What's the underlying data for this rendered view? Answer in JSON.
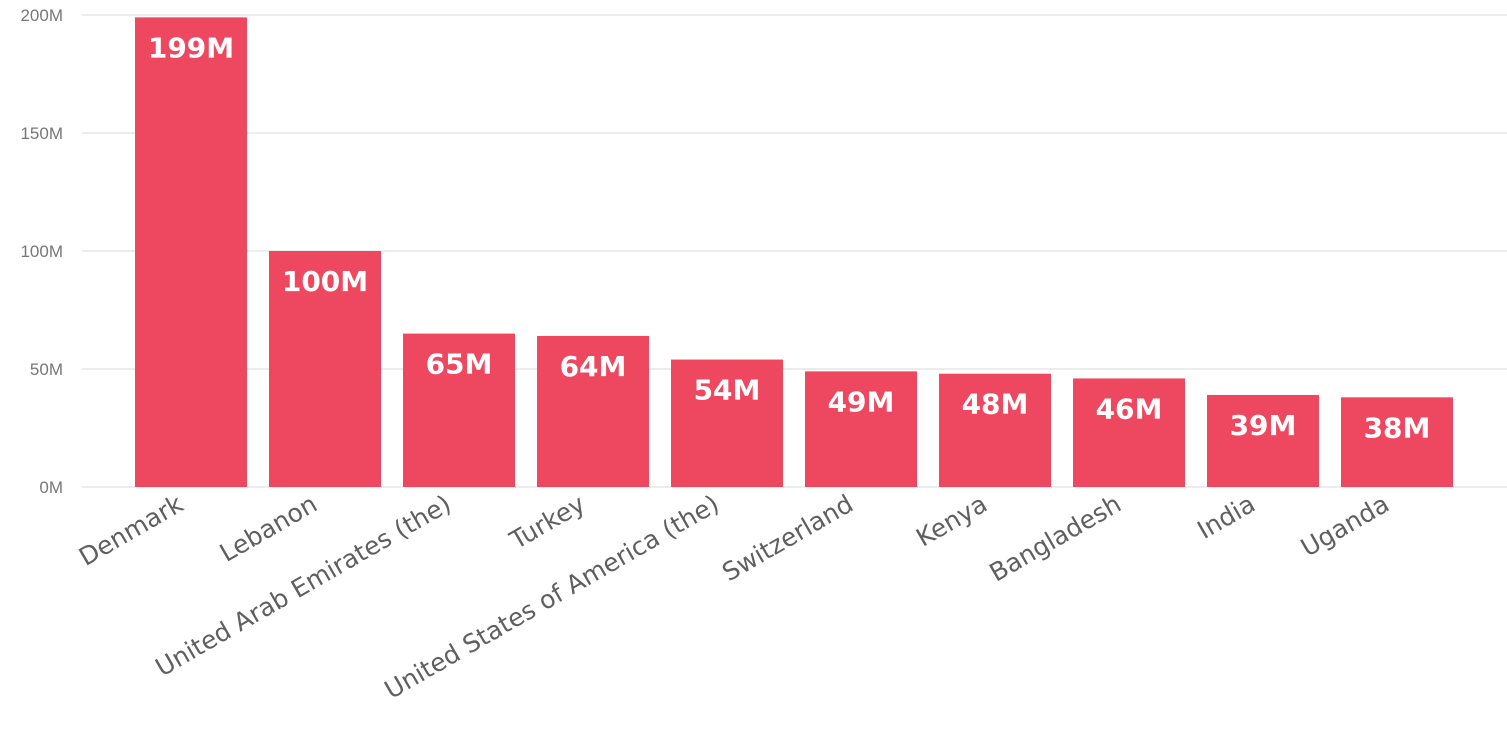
{
  "chart_data": {
    "type": "bar",
    "title": "",
    "xlabel": "",
    "ylabel": "",
    "categories": [
      "Denmark",
      "Lebanon",
      "United Arab Emirates (the)",
      "Turkey",
      "United States of America (the)",
      "Switzerland",
      "Kenya",
      "Bangladesh",
      "India",
      "Uganda"
    ],
    "values": [
      199,
      100,
      65,
      64,
      54,
      49,
      48,
      46,
      39,
      38
    ],
    "data_labels": [
      "199M",
      "100M",
      "65M",
      "64M",
      "54M",
      "49M",
      "48M",
      "46M",
      "39M",
      "38M"
    ],
    "unit_suffix": "M",
    "ylim": [
      0,
      200
    ],
    "yticks": [
      0,
      50,
      100,
      150,
      200
    ],
    "ytick_labels": [
      "0M",
      "50M",
      "100M",
      "150M",
      "200M"
    ],
    "grid": true,
    "legend": "none",
    "bar_color": "#ee4860"
  }
}
